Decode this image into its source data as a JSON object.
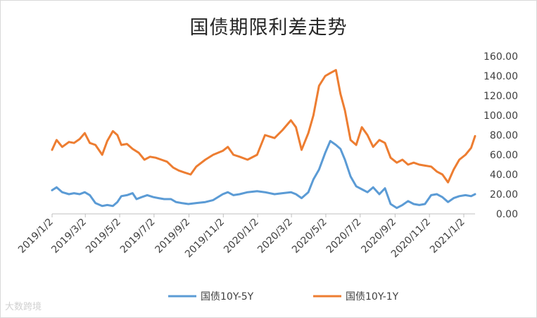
{
  "chart_data": {
    "type": "line",
    "title": "国债期限利差走势",
    "xlabel": "",
    "ylabel": "",
    "ylim": [
      0,
      160
    ],
    "yticks": [
      "0.00",
      "20.00",
      "40.00",
      "60.00",
      "80.00",
      "100.00",
      "120.00",
      "140.00",
      "160.00"
    ],
    "x_ticks": [
      "2019/1/2",
      "2019/3/2",
      "2019/5/2",
      "2019/7/2",
      "2019/9/2",
      "2019/11/2",
      "2020/1/2",
      "2020/3/2",
      "2020/5/2",
      "2020/7/2",
      "2020/9/2",
      "2020/11/2",
      "2021/1/2"
    ],
    "x_range": [
      "2019-01-02",
      "2021-01-22"
    ],
    "grid": false,
    "legend_position": "bottom",
    "series": [
      {
        "name": "国债10Y-5Y",
        "color": "#5b9bd5",
        "points": [
          [
            "2019-01-02",
            24
          ],
          [
            "2019-01-10",
            27
          ],
          [
            "2019-01-20",
            22
          ],
          [
            "2019-02-01",
            20
          ],
          [
            "2019-02-10",
            21
          ],
          [
            "2019-02-20",
            20
          ],
          [
            "2019-03-01",
            22
          ],
          [
            "2019-03-10",
            19
          ],
          [
            "2019-03-20",
            11
          ],
          [
            "2019-04-01",
            8
          ],
          [
            "2019-04-10",
            9
          ],
          [
            "2019-04-20",
            8
          ],
          [
            "2019-04-28",
            12
          ],
          [
            "2019-05-05",
            18
          ],
          [
            "2019-05-15",
            19
          ],
          [
            "2019-05-25",
            21
          ],
          [
            "2019-06-01",
            15
          ],
          [
            "2019-06-10",
            17
          ],
          [
            "2019-06-20",
            19
          ],
          [
            "2019-07-01",
            17
          ],
          [
            "2019-07-10",
            16
          ],
          [
            "2019-07-20",
            15
          ],
          [
            "2019-08-01",
            15
          ],
          [
            "2019-08-10",
            12
          ],
          [
            "2019-08-20",
            11
          ],
          [
            "2019-09-01",
            10
          ],
          [
            "2019-09-15",
            11
          ],
          [
            "2019-10-01",
            12
          ],
          [
            "2019-10-15",
            14
          ],
          [
            "2019-11-01",
            20
          ],
          [
            "2019-11-10",
            22
          ],
          [
            "2019-11-20",
            19
          ],
          [
            "2019-12-01",
            20
          ],
          [
            "2019-12-15",
            22
          ],
          [
            "2020-01-01",
            23
          ],
          [
            "2020-01-15",
            22
          ],
          [
            "2020-02-01",
            20
          ],
          [
            "2020-02-15",
            21
          ],
          [
            "2020-03-01",
            22
          ],
          [
            "2020-03-10",
            20
          ],
          [
            "2020-03-20",
            16
          ],
          [
            "2020-04-01",
            22
          ],
          [
            "2020-04-10",
            35
          ],
          [
            "2020-04-20",
            45
          ],
          [
            "2020-05-01",
            62
          ],
          [
            "2020-05-10",
            74
          ],
          [
            "2020-05-20",
            70
          ],
          [
            "2020-05-28",
            66
          ],
          [
            "2020-06-05",
            55
          ],
          [
            "2020-06-15",
            38
          ],
          [
            "2020-06-25",
            28
          ],
          [
            "2020-07-05",
            25
          ],
          [
            "2020-07-15",
            22
          ],
          [
            "2020-07-25",
            27
          ],
          [
            "2020-08-05",
            20
          ],
          [
            "2020-08-15",
            26
          ],
          [
            "2020-08-25",
            10
          ],
          [
            "2020-09-05",
            6
          ],
          [
            "2020-09-15",
            9
          ],
          [
            "2020-09-25",
            13
          ],
          [
            "2020-10-05",
            10
          ],
          [
            "2020-10-15",
            9
          ],
          [
            "2020-10-25",
            10
          ],
          [
            "2020-11-05",
            19
          ],
          [
            "2020-11-15",
            20
          ],
          [
            "2020-11-25",
            17
          ],
          [
            "2020-12-05",
            12
          ],
          [
            "2020-12-15",
            16
          ],
          [
            "2020-12-25",
            18
          ],
          [
            "2021-01-05",
            19
          ],
          [
            "2021-01-15",
            18
          ],
          [
            "2021-01-22",
            20
          ]
        ]
      },
      {
        "name": "国债10Y-1Y",
        "color": "#ed7d31",
        "points": [
          [
            "2019-01-02",
            65
          ],
          [
            "2019-01-10",
            75
          ],
          [
            "2019-01-20",
            68
          ],
          [
            "2019-02-01",
            73
          ],
          [
            "2019-02-10",
            72
          ],
          [
            "2019-02-20",
            76
          ],
          [
            "2019-03-01",
            82
          ],
          [
            "2019-03-10",
            72
          ],
          [
            "2019-03-20",
            70
          ],
          [
            "2019-04-01",
            60
          ],
          [
            "2019-04-10",
            74
          ],
          [
            "2019-04-20",
            84
          ],
          [
            "2019-04-28",
            80
          ],
          [
            "2019-05-05",
            70
          ],
          [
            "2019-05-15",
            71
          ],
          [
            "2019-05-25",
            66
          ],
          [
            "2019-06-05",
            62
          ],
          [
            "2019-06-15",
            55
          ],
          [
            "2019-06-25",
            58
          ],
          [
            "2019-07-05",
            57
          ],
          [
            "2019-07-15",
            55
          ],
          [
            "2019-07-25",
            53
          ],
          [
            "2019-08-05",
            47
          ],
          [
            "2019-08-15",
            44
          ],
          [
            "2019-08-25",
            42
          ],
          [
            "2019-09-05",
            40
          ],
          [
            "2019-09-15",
            48
          ],
          [
            "2019-10-01",
            55
          ],
          [
            "2019-10-15",
            60
          ],
          [
            "2019-11-01",
            64
          ],
          [
            "2019-11-10",
            68
          ],
          [
            "2019-11-20",
            60
          ],
          [
            "2019-12-01",
            58
          ],
          [
            "2019-12-15",
            55
          ],
          [
            "2020-01-01",
            60
          ],
          [
            "2020-01-15",
            80
          ],
          [
            "2020-02-01",
            77
          ],
          [
            "2020-02-15",
            85
          ],
          [
            "2020-03-01",
            95
          ],
          [
            "2020-03-10",
            88
          ],
          [
            "2020-03-20",
            65
          ],
          [
            "2020-04-01",
            82
          ],
          [
            "2020-04-10",
            100
          ],
          [
            "2020-04-20",
            130
          ],
          [
            "2020-05-01",
            140
          ],
          [
            "2020-05-10",
            143
          ],
          [
            "2020-05-20",
            146
          ],
          [
            "2020-05-28",
            122
          ],
          [
            "2020-06-05",
            105
          ],
          [
            "2020-06-15",
            75
          ],
          [
            "2020-06-25",
            70
          ],
          [
            "2020-07-05",
            88
          ],
          [
            "2020-07-15",
            80
          ],
          [
            "2020-07-25",
            68
          ],
          [
            "2020-08-05",
            75
          ],
          [
            "2020-08-15",
            72
          ],
          [
            "2020-08-25",
            57
          ],
          [
            "2020-09-05",
            52
          ],
          [
            "2020-09-15",
            55
          ],
          [
            "2020-09-25",
            50
          ],
          [
            "2020-10-05",
            52
          ],
          [
            "2020-10-15",
            50
          ],
          [
            "2020-10-25",
            49
          ],
          [
            "2020-11-05",
            48
          ],
          [
            "2020-11-15",
            43
          ],
          [
            "2020-11-25",
            40
          ],
          [
            "2020-12-05",
            32
          ],
          [
            "2020-12-15",
            45
          ],
          [
            "2020-12-25",
            55
          ],
          [
            "2021-01-05",
            60
          ],
          [
            "2021-01-15",
            67
          ],
          [
            "2021-01-22",
            79
          ]
        ]
      }
    ]
  },
  "watermark": "大数跨境"
}
